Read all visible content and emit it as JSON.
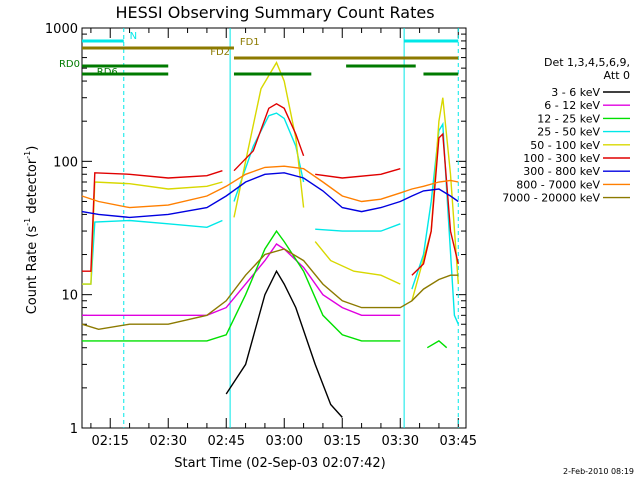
{
  "chart_data": {
    "type": "line",
    "title": "HESSI Observing Summary Count Rates",
    "xlabel": "Start Time (02-Sep-03 02:07:42)",
    "ylabel_main": "Count Rate (s",
    "ylabel_sup1": "-1",
    "ylabel_mid": " detector",
    "ylabel_sup2": "-1",
    "ylabel_end": ")",
    "y_scale": "log",
    "ylim": [
      1,
      1000
    ],
    "xlim": [
      "02:07:42",
      "03:47:00"
    ],
    "x_ticks": [
      "02:15",
      "02:30",
      "02:45",
      "03:00",
      "03:15",
      "03:30",
      "03:45"
    ],
    "y_ticks": [
      "1",
      "10",
      "100",
      "1000"
    ],
    "legend_placement": "right",
    "legend_header": [
      "Det 1,3,4,5,6,9,",
      "Att 0"
    ],
    "series": [
      {
        "name": "3 - 6 keV",
        "color": "#000000",
        "points": [
          [
            "02:07:42",
            null
          ],
          [
            "02:40",
            null
          ],
          [
            "02:45",
            1.8
          ],
          [
            "02:50",
            3
          ],
          [
            "02:55",
            10
          ],
          [
            "02:58",
            15
          ],
          [
            "03:00",
            12
          ],
          [
            "03:03",
            8
          ],
          [
            "03:08",
            3
          ],
          [
            "03:12",
            1.5
          ],
          [
            "03:15",
            1.2
          ],
          [
            "03:20",
            null
          ]
        ]
      },
      {
        "name": "6 - 12 keV",
        "color": "#e000e0",
        "points": [
          [
            "02:07:42",
            7
          ],
          [
            "02:40",
            7
          ],
          [
            "02:45",
            8
          ],
          [
            "02:50",
            12
          ],
          [
            "02:55",
            18
          ],
          [
            "02:58",
            24
          ],
          [
            "03:00",
            22
          ],
          [
            "03:05",
            16
          ],
          [
            "03:10",
            10
          ],
          [
            "03:15",
            8
          ],
          [
            "03:20",
            7
          ],
          [
            "03:30",
            7
          ],
          [
            "03:33",
            null
          ]
        ]
      },
      {
        "name": "12 - 25 keV",
        "color": "#00e000",
        "points": [
          [
            "02:07:42",
            4.5
          ],
          [
            "02:40",
            4.5
          ],
          [
            "02:45",
            5
          ],
          [
            "02:50",
            10
          ],
          [
            "02:55",
            22
          ],
          [
            "02:58",
            30
          ],
          [
            "03:00",
            25
          ],
          [
            "03:05",
            15
          ],
          [
            "03:10",
            7
          ],
          [
            "03:15",
            5
          ],
          [
            "03:20",
            4.5
          ],
          [
            "03:30",
            4.5
          ],
          [
            "03:33",
            null
          ],
          [
            "03:37",
            4
          ],
          [
            "03:40",
            4.5
          ],
          [
            "03:42",
            4
          ]
        ]
      },
      {
        "name": "25 - 50 keV",
        "color": "#00e8e8",
        "points": [
          [
            "02:07:42",
            12
          ],
          [
            "02:10",
            12
          ],
          [
            "02:11",
            35
          ],
          [
            "02:20",
            36
          ],
          [
            "02:30",
            34
          ],
          [
            "02:40",
            32
          ],
          [
            "02:44",
            36
          ],
          [
            "02:46",
            null
          ],
          [
            "02:47",
            50
          ],
          [
            "02:52",
            130
          ],
          [
            "02:56",
            220
          ],
          [
            "02:58",
            230
          ],
          [
            "03:00",
            210
          ],
          [
            "03:03",
            130
          ],
          [
            "03:05",
            70
          ],
          [
            "03:07",
            null
          ],
          [
            "03:08",
            31
          ],
          [
            "03:15",
            30
          ],
          [
            "03:25",
            30
          ],
          [
            "03:30",
            34
          ],
          [
            "03:32",
            null
          ],
          [
            "03:33",
            11
          ],
          [
            "03:36",
            20
          ],
          [
            "03:38",
            50
          ],
          [
            "03:40",
            170
          ],
          [
            "03:41",
            190
          ],
          [
            "03:42",
            60
          ],
          [
            "03:44",
            7
          ],
          [
            "03:45",
            6
          ]
        ]
      },
      {
        "name": "50 - 100 keV",
        "color": "#d8d800",
        "points": [
          [
            "02:07:42",
            12
          ],
          [
            "02:10",
            12
          ],
          [
            "02:11",
            70
          ],
          [
            "02:20",
            68
          ],
          [
            "02:30",
            62
          ],
          [
            "02:40",
            65
          ],
          [
            "02:44",
            70
          ],
          [
            "02:46",
            null
          ],
          [
            "02:47",
            38
          ],
          [
            "02:50",
            100
          ],
          [
            "02:54",
            350
          ],
          [
            "02:58",
            550
          ],
          [
            "03:00",
            400
          ],
          [
            "03:03",
            150
          ],
          [
            "03:05",
            45
          ],
          [
            "03:07",
            null
          ],
          [
            "03:08",
            25
          ],
          [
            "03:12",
            18
          ],
          [
            "03:18",
            15
          ],
          [
            "03:25",
            14
          ],
          [
            "03:30",
            12
          ],
          [
            "03:32",
            null
          ],
          [
            "03:33",
            9
          ],
          [
            "03:38",
            30
          ],
          [
            "03:40",
            200
          ],
          [
            "03:41",
            300
          ],
          [
            "03:43",
            80
          ],
          [
            "03:45",
            12
          ]
        ]
      },
      {
        "name": "100 - 300 keV",
        "color": "#e00000",
        "points": [
          [
            "02:07:42",
            15
          ],
          [
            "02:10",
            15
          ],
          [
            "02:11",
            82
          ],
          [
            "02:20",
            80
          ],
          [
            "02:30",
            75
          ],
          [
            "02:40",
            78
          ],
          [
            "02:44",
            85
          ],
          [
            "02:46",
            null
          ],
          [
            "02:47",
            85
          ],
          [
            "02:52",
            120
          ],
          [
            "02:56",
            250
          ],
          [
            "02:58",
            270
          ],
          [
            "03:00",
            250
          ],
          [
            "03:03",
            160
          ],
          [
            "03:05",
            110
          ],
          [
            "03:07",
            null
          ],
          [
            "03:08",
            80
          ],
          [
            "03:15",
            75
          ],
          [
            "03:25",
            80
          ],
          [
            "03:30",
            88
          ],
          [
            "03:32",
            null
          ],
          [
            "03:33",
            14
          ],
          [
            "03:36",
            17
          ],
          [
            "03:38",
            30
          ],
          [
            "03:40",
            150
          ],
          [
            "03:41",
            160
          ],
          [
            "03:43",
            30
          ],
          [
            "03:45",
            17
          ]
        ]
      },
      {
        "name": "300 - 800 keV",
        "color": "#0000e0",
        "points": [
          [
            "02:07:42",
            42
          ],
          [
            "02:12",
            40
          ],
          [
            "02:20",
            38
          ],
          [
            "02:30",
            40
          ],
          [
            "02:40",
            45
          ],
          [
            "02:45",
            55
          ],
          [
            "02:50",
            70
          ],
          [
            "02:55",
            80
          ],
          [
            "03:00",
            82
          ],
          [
            "03:05",
            75
          ],
          [
            "03:10",
            60
          ],
          [
            "03:15",
            45
          ],
          [
            "03:20",
            42
          ],
          [
            "03:25",
            45
          ],
          [
            "03:30",
            50
          ],
          [
            "03:33",
            55
          ],
          [
            "03:36",
            60
          ],
          [
            "03:40",
            62
          ],
          [
            "03:43",
            55
          ],
          [
            "03:45",
            50
          ]
        ]
      },
      {
        "name": "800 - 7000 keV",
        "color": "#ff7f00",
        "points": [
          [
            "02:07:42",
            55
          ],
          [
            "02:12",
            50
          ],
          [
            "02:20",
            45
          ],
          [
            "02:30",
            47
          ],
          [
            "02:40",
            55
          ],
          [
            "02:45",
            65
          ],
          [
            "02:50",
            80
          ],
          [
            "02:55",
            90
          ],
          [
            "03:00",
            92
          ],
          [
            "03:05",
            88
          ],
          [
            "03:10",
            70
          ],
          [
            "03:15",
            55
          ],
          [
            "03:20",
            50
          ],
          [
            "03:25",
            52
          ],
          [
            "03:30",
            58
          ],
          [
            "03:33",
            62
          ],
          [
            "03:36",
            65
          ],
          [
            "03:40",
            70
          ],
          [
            "03:43",
            72
          ],
          [
            "03:45",
            70
          ]
        ]
      },
      {
        "name": "7000 - 20000 keV",
        "color": "#8c7a00",
        "points": [
          [
            "02:07:42",
            6
          ],
          [
            "02:12",
            5.5
          ],
          [
            "02:20",
            6
          ],
          [
            "02:30",
            6
          ],
          [
            "02:40",
            7
          ],
          [
            "02:45",
            9
          ],
          [
            "02:50",
            14
          ],
          [
            "02:55",
            20
          ],
          [
            "03:00",
            22
          ],
          [
            "03:05",
            18
          ],
          [
            "03:10",
            12
          ],
          [
            "03:15",
            9
          ],
          [
            "03:20",
            8
          ],
          [
            "03:25",
            8
          ],
          [
            "03:30",
            8
          ],
          [
            "03:33",
            9
          ],
          [
            "03:36",
            11
          ],
          [
            "03:40",
            13
          ],
          [
            "03:43",
            14
          ],
          [
            "03:45",
            14
          ]
        ]
      }
    ],
    "annotation_bars": [
      {
        "label": "N",
        "color": "#00e8e8",
        "segments": [
          [
            "02:07:42",
            "02:18:30"
          ],
          [
            "03:31",
            "03:45"
          ]
        ]
      },
      {
        "label": "FD1",
        "color": "#8c7a00",
        "segments": [
          [
            "02:07:42",
            "02:47"
          ]
        ]
      },
      {
        "label": "FD2",
        "color": "#8c7a00",
        "segments": [
          [
            "02:47",
            "03:45"
          ]
        ]
      },
      {
        "label": "RD0",
        "color": "#007a00",
        "segments": [
          [
            "02:07:42",
            "02:30"
          ],
          [
            "03:16",
            "03:34"
          ]
        ]
      },
      {
        "label": "RD6",
        "color": "#007a00",
        "segments": [
          [
            "02:07:42",
            "02:30"
          ],
          [
            "02:47",
            "03:07"
          ],
          [
            "03:36",
            "03:45"
          ]
        ]
      }
    ],
    "vertical_lines": {
      "solid": {
        "color": "#00e8e8",
        "times": [
          "02:46",
          "03:31"
        ]
      },
      "dashed": {
        "color": "#00e8e8",
        "times": [
          "02:18:30",
          "03:45"
        ]
      }
    }
  },
  "footer_date": "2-Feb-2010 08:19"
}
